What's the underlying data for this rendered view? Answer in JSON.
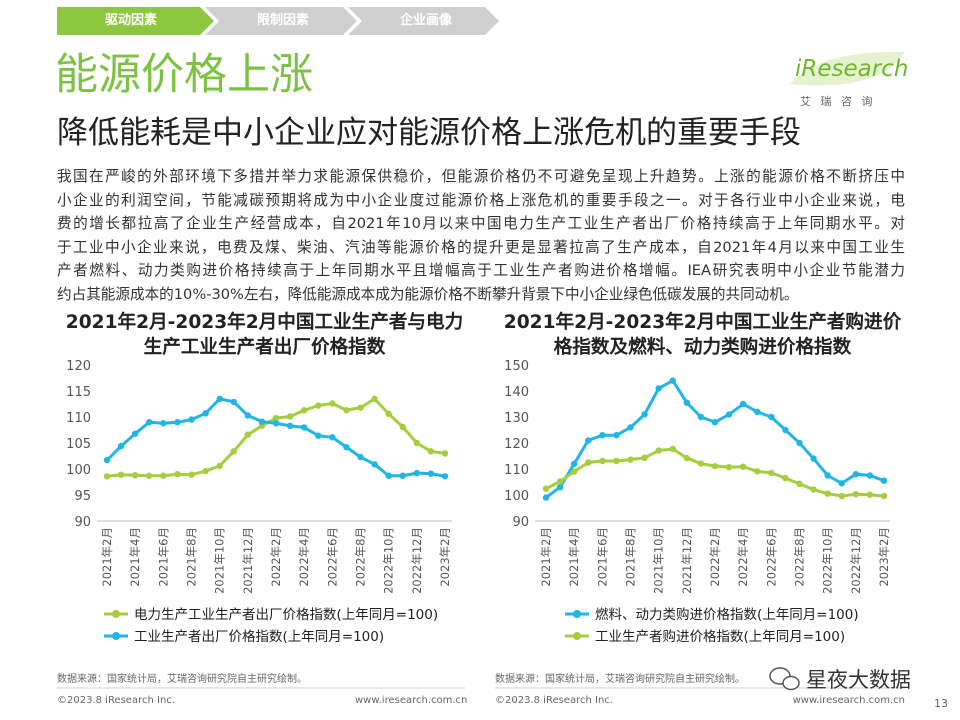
{
  "nav": [
    "驱动因素",
    "限制因素",
    "企业画像"
  ],
  "logo": {
    "name": "iResearch",
    "sub": "艾 瑞 咨 询"
  },
  "title": "能源价格上涨",
  "subtitle": "降低能耗是中小企业应对能源价格上涨危机的重要手段",
  "body": [
    "我国在严峻的外部环境下多措并举力求能源保供稳价，但能源价格仍不可避免呈现上升趋势。上涨的能源价格不断挤压中",
    "小企业的利润空间，节能减碳预期将成为中小企业度过能源价格上涨危机的重要手段之一。对于各行业中小企业来说，电",
    "费的增长都拉高了企业生产经营成本，自2021年10月以来中国电力生产工业生产者出厂价格持续高于上年同期水平。对",
    "于工业中小企业来说，电费及煤、柴油、汽油等能源价格的提升更是显著拉高了生产成本，自2021年4月以来中国工业生",
    "产者燃料、动力类购进价格持续高于上年同期水平且增幅高于工业生产者购进价格增幅。IEA研究表明中小企业节能潜力",
    "约占其能源成本的10%-30%左右，降低能源成本成为能源价格不断攀升背景下中小企业绿色低碳发展的共同动机。"
  ],
  "chart_data": [
    {
      "type": "line",
      "title": "2021年2月-2023年2月中国工业生产者与电力生产工业生产者出厂价格指数",
      "categories": [
        "2021年2月",
        null,
        "2021年4月",
        null,
        "2021年6月",
        null,
        "2021年8月",
        null,
        "2021年10月",
        null,
        "2021年12月",
        null,
        "2022年2月",
        null,
        "2022年4月",
        null,
        "2022年6月",
        null,
        "2022年8月",
        null,
        "2022年10月",
        null,
        "2022年12月",
        null,
        "2023年2月"
      ],
      "series": [
        {
          "name": "电力生产工业生产者出厂价格指数(上年同月=100)",
          "color": "#a6cd3e",
          "values": [
            98.6,
            98.9,
            98.8,
            98.7,
            98.7,
            99.0,
            98.9,
            99.6,
            100.6,
            103.4,
            106.6,
            108.3,
            109.8,
            110.1,
            111.3,
            112.2,
            112.6,
            111.3,
            111.8,
            113.5,
            110.6,
            108.1,
            105.0,
            103.4,
            103.0
          ]
        },
        {
          "name": "工业生产者出厂价格指数(上年同月=100)",
          "color": "#1fb5e6",
          "values": [
            101.7,
            104.4,
            106.8,
            109.0,
            108.8,
            109.0,
            109.5,
            110.7,
            113.5,
            112.9,
            110.3,
            109.1,
            108.8,
            108.3,
            108.0,
            106.4,
            106.1,
            104.2,
            102.3,
            100.9,
            98.7,
            98.7,
            99.2,
            99.1,
            98.6
          ]
        }
      ],
      "ylim": [
        90,
        120
      ],
      "yticks": [
        90,
        95,
        100,
        105,
        110,
        115,
        120
      ],
      "grid": false,
      "source": "数据来源：国家统计局，艾瑞咨询研究院自主研究绘制。"
    },
    {
      "type": "line",
      "title": "2021年2月-2023年2月中国工业生产者购进价格指数及燃料、动力类购进价格指数",
      "categories": [
        "2021年2月",
        null,
        "2021年4月",
        null,
        "2021年6月",
        null,
        "2021年8月",
        null,
        "2021年10月",
        null,
        "2021年12月",
        null,
        "2022年2月",
        null,
        "2022年4月",
        null,
        "2022年6月",
        null,
        "2022年8月",
        null,
        "2022年10月",
        null,
        "2022年12月",
        null,
        "2023年2月"
      ],
      "series": [
        {
          "name": "燃料、动力类购进价格指数(上年同月=100)",
          "color": "#1fb5e6",
          "values": [
            99.0,
            103.0,
            112.0,
            121.0,
            123.0,
            123.0,
            126.0,
            131.0,
            141.0,
            144.0,
            135.5,
            130.0,
            128.0,
            131.0,
            135.0,
            132.0,
            130.0,
            125.0,
            120.0,
            114.0,
            107.5,
            104.5,
            108.0,
            107.5,
            105.5
          ]
        },
        {
          "name": "工业生产者购进价格指数(上年同月=100)",
          "color": "#a6cd3e",
          "values": [
            102.4,
            105.2,
            109.0,
            112.5,
            113.1,
            113.1,
            113.6,
            114.3,
            117.1,
            117.7,
            114.2,
            112.1,
            111.1,
            110.7,
            110.9,
            109.1,
            108.5,
            106.5,
            104.3,
            102.1,
            100.5,
            99.6,
            100.3,
            100.1,
            99.6
          ]
        }
      ],
      "ylim": [
        90,
        150
      ],
      "yticks": [
        90,
        100,
        110,
        120,
        130,
        140,
        150
      ],
      "grid": false,
      "source": "数据来源：国家统计局，艾瑞咨询研究院自主研究绘制。"
    }
  ],
  "footers": [
    {
      "copyright": "©2023.8 iResearch Inc.",
      "website": "www.iresearch.com.cn"
    },
    {
      "copyright": "©2023.8 iResearch Inc.",
      "website": "www.iresearch.com.cn"
    }
  ],
  "watermark": "星夜大数据",
  "page_number": "13"
}
